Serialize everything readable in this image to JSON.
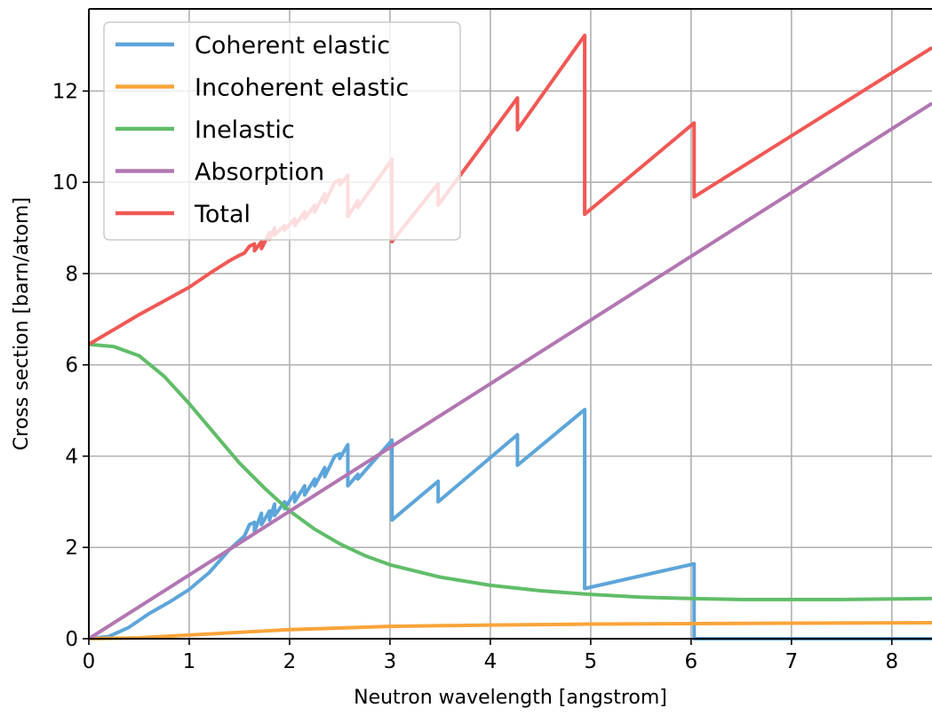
{
  "chart_data": {
    "type": "line",
    "title": "",
    "xlabel": "Neutron wavelength [angstrom]",
    "ylabel": "Cross section [barn/atom]",
    "xlim": [
      0,
      8.4
    ],
    "ylim": [
      0,
      13.8
    ],
    "xticks": [
      0,
      1,
      2,
      3,
      4,
      5,
      6,
      7,
      8
    ],
    "yticks": [
      0,
      2,
      4,
      6,
      8,
      10,
      12
    ],
    "grid": true,
    "legend_position": "top-left",
    "series": [
      {
        "name": "Coherent elastic",
        "color": "#5DA5DA",
        "x": [
          0,
          0.2,
          0.4,
          0.6,
          0.8,
          1.0,
          1.2,
          1.4,
          1.5,
          1.55,
          1.6,
          1.65,
          1.65,
          1.72,
          1.72,
          1.8,
          1.8,
          1.85,
          1.85,
          1.95,
          1.95,
          2.05,
          2.05,
          2.15,
          2.15,
          2.25,
          2.25,
          2.35,
          2.35,
          2.45,
          2.5,
          2.5,
          2.58,
          2.58,
          2.68,
          2.68,
          3.02,
          3.02,
          3.48,
          3.48,
          4.27,
          4.27,
          4.94,
          4.94,
          6.03,
          6.03,
          8.4
        ],
        "y": [
          0,
          0.05,
          0.25,
          0.55,
          0.8,
          1.08,
          1.45,
          1.95,
          2.15,
          2.25,
          2.5,
          2.55,
          2.35,
          2.75,
          2.5,
          2.8,
          2.6,
          2.95,
          2.7,
          3.0,
          2.85,
          3.2,
          3.0,
          3.35,
          3.15,
          3.5,
          3.35,
          3.75,
          3.55,
          4.0,
          4.05,
          3.95,
          4.25,
          3.35,
          3.6,
          3.5,
          4.35,
          2.6,
          3.45,
          3.0,
          4.47,
          3.8,
          5.02,
          1.1,
          1.64,
          0.0,
          0.0
        ]
      },
      {
        "name": "Incoherent elastic",
        "color": "#FAA43A",
        "x": [
          0,
          0.5,
          1.0,
          1.5,
          2.0,
          3.0,
          4.0,
          5.0,
          6.0,
          7.0,
          8.4
        ],
        "y": [
          0,
          0.02,
          0.08,
          0.14,
          0.2,
          0.27,
          0.3,
          0.32,
          0.33,
          0.34,
          0.35
        ]
      },
      {
        "name": "Inelastic",
        "color": "#60BD68",
        "x": [
          0,
          0.25,
          0.5,
          0.75,
          1.0,
          1.25,
          1.5,
          1.75,
          2.0,
          2.25,
          2.5,
          2.75,
          3.0,
          3.5,
          4.0,
          4.5,
          5.0,
          5.5,
          6.0,
          6.5,
          7.0,
          7.5,
          8.0,
          8.4
        ],
        "y": [
          6.45,
          6.4,
          6.2,
          5.75,
          5.15,
          4.5,
          3.85,
          3.3,
          2.8,
          2.4,
          2.08,
          1.82,
          1.62,
          1.35,
          1.17,
          1.05,
          0.97,
          0.91,
          0.88,
          0.86,
          0.86,
          0.86,
          0.87,
          0.88
        ]
      },
      {
        "name": "Absorption",
        "color": "#B276B2",
        "x": [
          0,
          8.4
        ],
        "y": [
          0,
          11.73
        ]
      },
      {
        "name": "Total",
        "color": "#F15854",
        "x": [
          0,
          0.5,
          1.0,
          1.2,
          1.4,
          1.5,
          1.55,
          1.6,
          1.65,
          1.65,
          1.72,
          1.72,
          1.8,
          1.8,
          1.85,
          1.85,
          1.95,
          1.95,
          2.05,
          2.05,
          2.15,
          2.15,
          2.25,
          2.25,
          2.35,
          2.35,
          2.45,
          2.5,
          2.5,
          2.58,
          2.58,
          2.68,
          2.68,
          3.02,
          3.02,
          3.48,
          3.48,
          4.27,
          4.27,
          4.94,
          4.94,
          6.03,
          6.03,
          8.4
        ],
        "y": [
          6.45,
          7.1,
          7.7,
          8.0,
          8.28,
          8.4,
          8.45,
          8.6,
          8.65,
          8.5,
          8.7,
          8.55,
          8.9,
          8.75,
          9.0,
          8.85,
          9.05,
          8.95,
          9.2,
          9.05,
          9.35,
          9.2,
          9.5,
          9.35,
          9.75,
          9.55,
          10.0,
          10.05,
          9.95,
          10.15,
          9.25,
          9.6,
          9.45,
          10.5,
          8.7,
          9.97,
          9.5,
          11.85,
          11.15,
          13.22,
          9.3,
          11.3,
          9.68,
          12.95
        ]
      }
    ]
  }
}
